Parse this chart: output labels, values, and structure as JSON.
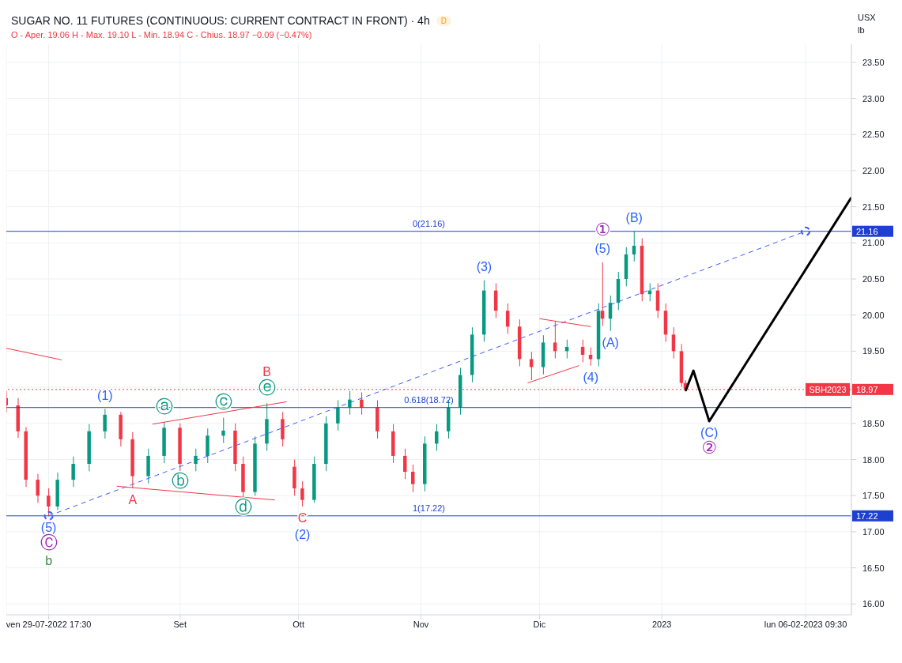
{
  "chart_data": {
    "type": "candlestick",
    "title": "SUGAR NO. 11 FUTURES (CONTINUOUS: CURRENT CONTRACT IN FRONT) · 4h",
    "subtitle": "O - Aper. 19.06  H - Max. 19.10  L - Min. 18.94  C - Chius. 18.97  −0.09 (−0.47%)",
    "ylabel": "USX lb",
    "x": [
      "2022-07-19",
      "2022-07-22",
      "2022-07-24",
      "2022-07-27",
      "2022-07-29T17:30",
      "2022-08-01",
      "2022-08-05",
      "2022-08-09",
      "2022-08-13",
      "2022-08-17",
      "2022-08-20",
      "2022-08-24",
      "2022-08-28",
      "2022-09-01",
      "2022-09-05",
      "2022-09-08",
      "2022-09-12",
      "2022-09-15",
      "2022-09-17",
      "2022-09-20",
      "2022-09-23",
      "2022-09-27",
      "2022-09-30",
      "2022-10-02",
      "2022-10-05",
      "2022-10-08",
      "2022-10-11",
      "2022-10-14",
      "2022-10-17",
      "2022-10-21",
      "2022-10-25",
      "2022-10-28",
      "2022-10-30",
      "2022-11-02",
      "2022-11-05",
      "2022-11-08",
      "2022-11-11",
      "2022-11-14",
      "2022-11-17",
      "2022-11-20",
      "2022-11-23",
      "2022-11-26",
      "2022-11-29",
      "2022-12-02",
      "2022-12-05",
      "2022-12-08",
      "2022-12-12",
      "2022-12-14",
      "2022-12-16",
      "2022-12-17",
      "2022-12-19",
      "2022-12-21",
      "2022-12-23",
      "2022-12-25",
      "2022-12-27",
      "2022-12-29",
      "2022-12-31",
      "2023-01-02",
      "2023-01-04",
      "2023-01-06",
      "2023-01-07"
    ],
    "ohlc": [
      [
        18.85,
        18.95,
        18.65,
        18.75
      ],
      [
        18.75,
        18.85,
        18.3,
        18.39
      ],
      [
        18.39,
        18.45,
        17.62,
        17.72
      ],
      [
        17.72,
        17.8,
        17.4,
        17.5
      ],
      [
        17.5,
        17.6,
        17.22,
        17.35
      ],
      [
        17.35,
        17.82,
        17.3,
        17.72
      ],
      [
        17.72,
        18.04,
        17.62,
        17.94
      ],
      [
        17.94,
        18.49,
        17.84,
        18.39
      ],
      [
        18.39,
        18.7,
        18.29,
        18.62
      ],
      [
        18.62,
        18.66,
        18.18,
        18.28
      ],
      [
        18.28,
        18.38,
        17.6,
        17.77
      ],
      [
        17.77,
        18.15,
        17.67,
        18.05
      ],
      [
        18.05,
        18.52,
        17.95,
        18.44
      ],
      [
        18.44,
        18.5,
        17.84,
        17.94
      ],
      [
        17.94,
        18.15,
        17.84,
        18.05
      ],
      [
        18.05,
        18.43,
        17.95,
        18.33
      ],
      [
        18.33,
        18.58,
        18.23,
        18.4
      ],
      [
        18.4,
        18.5,
        17.84,
        17.94
      ],
      [
        17.94,
        18.04,
        17.48,
        17.55
      ],
      [
        17.55,
        18.32,
        17.5,
        18.22
      ],
      [
        18.22,
        18.78,
        18.12,
        18.56
      ],
      [
        18.56,
        18.66,
        18.18,
        18.28
      ],
      [
        17.9,
        18.0,
        17.5,
        17.6
      ],
      [
        17.6,
        17.7,
        17.35,
        17.44
      ],
      [
        17.44,
        18.04,
        17.4,
        17.94
      ],
      [
        17.94,
        18.6,
        17.84,
        18.5
      ],
      [
        18.5,
        18.82,
        18.4,
        18.72
      ],
      [
        18.72,
        18.95,
        18.62,
        18.83
      ],
      [
        18.83,
        18.93,
        18.62,
        18.72
      ],
      [
        18.72,
        18.82,
        18.29,
        18.39
      ],
      [
        18.39,
        18.49,
        17.95,
        18.05
      ],
      [
        18.05,
        18.15,
        17.73,
        17.83
      ],
      [
        17.83,
        17.93,
        17.55,
        17.66
      ],
      [
        17.66,
        18.32,
        17.56,
        18.22
      ],
      [
        18.22,
        18.49,
        18.12,
        18.39
      ],
      [
        18.39,
        18.82,
        18.29,
        18.72
      ],
      [
        18.72,
        19.27,
        18.62,
        19.17
      ],
      [
        19.17,
        19.83,
        19.07,
        19.73
      ],
      [
        19.73,
        20.48,
        19.63,
        20.34
      ],
      [
        20.34,
        20.44,
        19.96,
        20.06
      ],
      [
        20.06,
        20.16,
        19.74,
        19.84
      ],
      [
        19.84,
        19.94,
        19.29,
        19.39
      ],
      [
        19.39,
        19.49,
        19.1,
        19.28
      ],
      [
        19.28,
        19.72,
        19.18,
        19.62
      ],
      [
        19.62,
        19.92,
        19.4,
        19.5
      ],
      [
        19.5,
        19.66,
        19.4,
        19.56
      ],
      [
        19.56,
        19.66,
        19.35,
        19.45
      ],
      [
        19.45,
        19.55,
        19.3,
        19.39
      ],
      [
        19.39,
        20.16,
        19.29,
        20.06
      ],
      [
        20.06,
        20.73,
        19.85,
        19.95
      ],
      [
        19.95,
        20.27,
        19.78,
        20.17
      ],
      [
        20.17,
        20.6,
        20.07,
        20.5
      ],
      [
        20.5,
        20.94,
        20.4,
        20.84
      ],
      [
        20.84,
        21.16,
        20.74,
        20.96
      ],
      [
        20.96,
        21.06,
        20.19,
        20.29
      ],
      [
        20.29,
        20.44,
        20.19,
        20.34
      ],
      [
        20.34,
        20.44,
        19.96,
        20.06
      ],
      [
        20.06,
        20.16,
        19.63,
        19.73
      ],
      [
        19.73,
        19.83,
        19.4,
        19.5
      ],
      [
        19.5,
        19.6,
        19.0,
        19.06
      ],
      [
        19.06,
        19.1,
        18.94,
        18.97
      ]
    ],
    "colors": [
      "#f23645",
      "#f23645",
      "#f23645",
      "#f23645",
      "#f23645",
      "#089981",
      "#089981",
      "#089981",
      "#089981",
      "#f23645",
      "#f23645",
      "#089981",
      "#089981",
      "#f23645",
      "#089981",
      "#089981",
      "#089981",
      "#f23645",
      "#f23645",
      "#089981",
      "#089981",
      "#f23645",
      "#f23645",
      "#f23645",
      "#089981",
      "#089981",
      "#089981",
      "#089981",
      "#f23645",
      "#f23645",
      "#f23645",
      "#f23645",
      "#f23645",
      "#089981",
      "#089981",
      "#089981",
      "#089981",
      "#089981",
      "#089981",
      "#f23645",
      "#f23645",
      "#f23645",
      "#f23645",
      "#089981",
      "#f23645",
      "#089981",
      "#f23645",
      "#f23645",
      "#089981",
      "#f23645",
      "#089981",
      "#089981",
      "#089981",
      "#089981",
      "#f23645",
      "#089981",
      "#f23645",
      "#f23645",
      "#f23645",
      "#f23645",
      "#f23645"
    ],
    "series": [
      {
        "type": "line",
        "color": "#3d5afe",
        "line_style": "dashed",
        "marker": "circle",
        "x": [
          "2022-07-29T17:30",
          "2023-02-06T09:30"
        ],
        "values": [
          17.22,
          21.16
        ]
      },
      {
        "type": "line",
        "color": "#f23645",
        "line_style": "solid",
        "marker": "none",
        "x": [
          "2022-07-19",
          "2022-08-02"
        ],
        "values": [
          19.54,
          19.38
        ]
      },
      {
        "type": "line",
        "color": "#f23645",
        "line_style": "solid",
        "marker": "none",
        "x": [
          "2022-08-16",
          "2022-09-25"
        ],
        "values": [
          17.63,
          17.44
        ]
      },
      {
        "type": "line",
        "color": "#f23645",
        "line_style": "solid",
        "marker": "none",
        "x": [
          "2022-08-25",
          "2022-09-28"
        ],
        "values": [
          18.49,
          18.8
        ]
      },
      {
        "type": "line",
        "color": "#f23645",
        "line_style": "solid",
        "marker": "none",
        "x": [
          "2022-12-01",
          "2022-12-14"
        ],
        "values": [
          19.95,
          19.84
        ]
      },
      {
        "type": "line",
        "color": "#f23645",
        "line_style": "solid",
        "marker": "none",
        "x": [
          "2022-11-28",
          "2022-12-11"
        ],
        "values": [
          19.06,
          19.3
        ]
      },
      {
        "type": "line",
        "color": "#000000",
        "line_style": "solid",
        "marker": "none",
        "x": [
          "2023-01-07",
          "2023-01-09",
          "2023-01-13",
          "2023-02-18"
        ],
        "values": [
          18.95,
          19.23,
          18.53,
          21.63
        ]
      }
    ],
    "ref_lines": [
      {
        "axis": "y",
        "value": 21.16,
        "label": "0(21.16)",
        "color": "#1e40d0",
        "line_style": "solid"
      },
      {
        "axis": "y",
        "value": 18.72,
        "label": "0.618(18.72)",
        "color": "#1e40d0",
        "line_style": "solid"
      },
      {
        "axis": "y",
        "value": 17.22,
        "label": "1(17.22)",
        "color": "#1e40d0",
        "line_style": "solid"
      },
      {
        "axis": "y",
        "value": 18.97,
        "label": "SBH2023",
        "color": "#f23645",
        "line_style": "dotted"
      }
    ],
    "annotations": [
      "D",
      {
        "text": "(5)",
        "x": "2022-07-29T17:30",
        "y": 17.22
      },
      {
        "text": "Ⓒ",
        "x": "2022-07-29T17:30",
        "y": 17.22
      },
      {
        "text": "b",
        "x": "2022-07-29T17:30",
        "y": 17.22
      },
      {
        "text": "(1)",
        "x": "2022-08-13",
        "y": 18.7
      },
      {
        "text": "A",
        "x": "2022-08-20",
        "y": 17.6
      },
      {
        "text": "ⓐ",
        "x": "2022-08-28",
        "y": 18.52
      },
      {
        "text": "ⓑ",
        "x": "2022-09-01",
        "y": 17.84
      },
      {
        "text": "ⓒ",
        "x": "2022-09-12",
        "y": 18.58
      },
      {
        "text": "ⓓ",
        "x": "2022-09-17",
        "y": 17.48
      },
      {
        "text": "ⓔ",
        "x": "2022-09-23",
        "y": 18.78
      },
      {
        "text": "B",
        "x": "2022-09-23",
        "y": 18.78
      },
      {
        "text": "C",
        "x": "2022-10-02",
        "y": 17.35
      },
      {
        "text": "(2)",
        "x": "2022-10-02",
        "y": 17.35
      },
      {
        "text": "(3)",
        "x": "2022-11-17",
        "y": 20.48
      },
      {
        "text": "(4)",
        "x": "2022-12-14",
        "y": 19.3
      },
      {
        "text": "(A)",
        "x": "2022-12-19",
        "y": 19.78
      },
      {
        "text": "(5)",
        "x": "2022-12-17",
        "y": 20.73
      },
      {
        "text": "①",
        "x": "2022-12-17",
        "y": 20.73
      },
      {
        "text": "(B)",
        "x": "2022-12-25",
        "y": 21.16
      },
      {
        "text": "(C)",
        "x": "2023-01-13",
        "y": 18.53
      },
      {
        "text": "②",
        "x": "2023-01-13",
        "y": 18.53
      },
      "21.16",
      "18.97",
      "17.22"
    ],
    "xlim": [
      "2022-07-19",
      "2023-02-18"
    ],
    "xticks": [
      {
        "value": "2022-07-29T17:30",
        "label": "ven 29-07-2022   17:30"
      },
      {
        "value": "2022-09-01",
        "label": "Set"
      },
      {
        "value": "2022-10-01",
        "label": "Ott"
      },
      {
        "value": "2022-11-01",
        "label": "Nov"
      },
      {
        "value": "2022-12-01",
        "label": "Dic"
      },
      {
        "value": "2023-01-01",
        "label": "2023"
      },
      {
        "value": "2023-02-06T09:30",
        "label": "lun 06-02-2023   09:30"
      }
    ],
    "ylim": [
      15.85,
      23.75
    ],
    "yticks": [
      {
        "value": 16,
        "label": "16.00"
      },
      {
        "value": 16.5,
        "label": "16.50"
      },
      {
        "value": 17,
        "label": "17.00"
      },
      {
        "value": 17.5,
        "label": "17.50"
      },
      {
        "value": 18,
        "label": "18.00"
      },
      {
        "value": 18.5,
        "label": "18.50"
      },
      {
        "value": 19,
        "label": null
      },
      {
        "value": 19.5,
        "label": "19.50"
      },
      {
        "value": 20,
        "label": "20.00"
      },
      {
        "value": 20.5,
        "label": "20.50"
      },
      {
        "value": 21,
        "label": "21.00"
      },
      {
        "value": 21.5,
        "label": "21.50"
      },
      {
        "value": 22,
        "label": "22.00"
      },
      {
        "value": 22.5,
        "label": "22.50"
      },
      {
        "value": 23,
        "label": "23.00"
      },
      {
        "value": 23.5,
        "label": "23.50"
      }
    ],
    "grid": true,
    "legend": false
  }
}
